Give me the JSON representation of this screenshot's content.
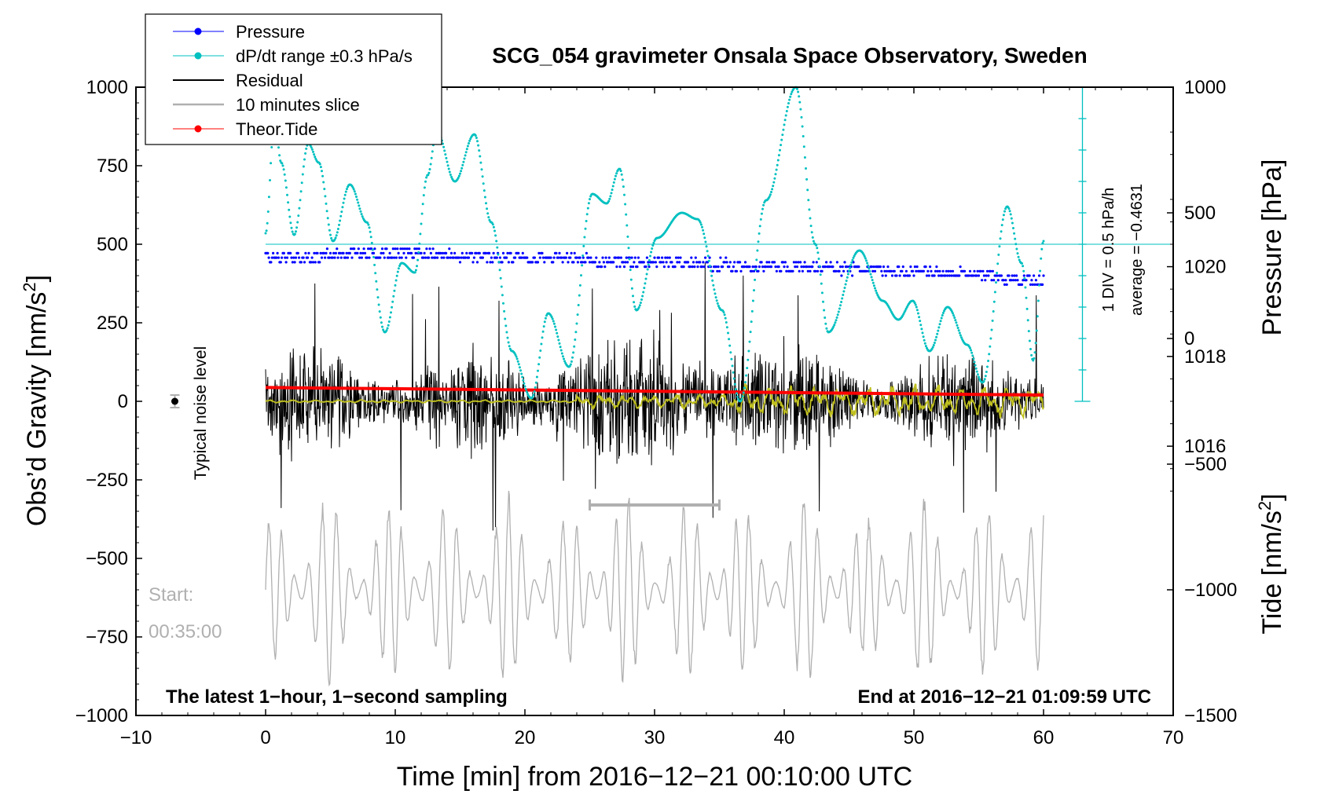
{
  "chart_data": {
    "type": "line",
    "title": "SCG_054 gravimeter Onsala Space Observatory, Sweden",
    "xlabel": "Time [min] from 2016−12−21 00:10:00 UTC",
    "ylabel": "Obs’d Gravity [nm/s2]",
    "ylabel_parts": {
      "main": "Obs’d Gravity [nm/s",
      "sup": "2",
      "end": "]"
    },
    "xlim": [
      -10,
      70
    ],
    "ylim": [
      -1000,
      1000
    ],
    "x_ticks": [
      "−10",
      "0",
      "10",
      "20",
      "30",
      "40",
      "50",
      "60",
      "70"
    ],
    "y_ticks": [
      "−1000",
      "−750",
      "−500",
      "−250",
      "0",
      "250",
      "500",
      "750",
      "1000"
    ],
    "pressure_axis": {
      "label": "Pressure [hPa]",
      "ticks": [
        "1016",
        "1018",
        "1020"
      ],
      "tick_values": [
        1016,
        1018,
        1020
      ],
      "range": [
        1010,
        1024
      ]
    },
    "tide_axis": {
      "label_parts": {
        "main": "Tide [nm/s",
        "sup": "2",
        "end": "]"
      },
      "ticks": [
        "−1500",
        "−1000",
        "−500",
        "0",
        "500",
        "1000"
      ],
      "tick_values": [
        -1500,
        -1000,
        -500,
        0,
        500,
        1000
      ],
      "range": [
        -1500,
        1000
      ]
    },
    "legend": {
      "placement": "top-left",
      "entries": [
        "Pressure",
        "dP/dt range ±0.3 hPa/s",
        "Residual",
        "10 minutes slice",
        "Theor.Tide"
      ],
      "colors": [
        "#0000ff",
        "#00c0c0",
        "#000000",
        "#b0b0b0",
        "#ff0000"
      ]
    },
    "annotations": {
      "noise_level": "Typical noise level",
      "noise_x": -7,
      "noise_y": 0,
      "noise_err": 20,
      "scale_div": "1 DIV = 0.5 hPa/h",
      "scale_avg": "average = −0.4631",
      "scale_x": 63,
      "scale_y_top": 1000,
      "scale_y_bottom": 0,
      "scale_y_mid": 500,
      "slice_start_label": "Start:",
      "slice_start_time": "00:35:00",
      "slice_bar": [
        25,
        35
      ],
      "slice_bar_y": -330,
      "bottom_left": "The latest 1−hour, 1−second sampling",
      "bottom_right": "End at 2016−12−21 01:09:59 UTC"
    },
    "series": [
      {
        "name": "Pressure",
        "axis": "pressure",
        "color": "#0000ff",
        "x": [
          0,
          10,
          20,
          30,
          40,
          50,
          60
        ],
        "values": [
          1020.2,
          1020.3,
          1020.2,
          1020.1,
          1020.0,
          1019.9,
          1019.7
        ]
      },
      {
        "name": "dP/dt range ±0.3 hPa/s",
        "axis": "gravity",
        "color": "#00c0c0",
        "x": [
          0,
          0.7,
          1.2,
          2.2,
          3.3,
          4.1,
          5.2,
          6.5,
          7.8,
          9.2,
          10.5,
          11.5,
          12.5,
          13.2,
          14.6,
          16.1,
          17.4,
          19,
          20.5,
          21.8,
          23.4,
          25.2,
          26.3,
          27.3,
          28.6,
          30.2,
          32.1,
          33.3,
          35.2,
          36.6,
          38.6,
          40.9,
          42.4,
          43.4,
          45.8,
          47.6,
          48.8,
          49.9,
          51.2,
          52.6,
          54.1,
          55.3,
          57.2,
          58.3,
          59.2,
          60
        ],
        "values": [
          535,
          900,
          760,
          530,
          820,
          760,
          510,
          690,
          570,
          220,
          440,
          410,
          720,
          860,
          700,
          850,
          570,
          160,
          10,
          280,
          110,
          660,
          630,
          740,
          290,
          520,
          600,
          580,
          290,
          0,
          640,
          1000,
          500,
          220,
          480,
          320,
          260,
          320,
          160,
          300,
          180,
          60,
          620,
          440,
          130,
          510
        ]
      },
      {
        "name": "Residual",
        "axis": "gravity",
        "color": "#000000",
        "description_range": [
          -350,
          510
        ]
      },
      {
        "name": "10 minutes slice",
        "axis": "gravity",
        "color": "#b0b0b0",
        "baseline": -600,
        "x_range": [
          0,
          60
        ]
      },
      {
        "name": "Theor.Tide",
        "axis": "tide",
        "color": "#ff0000",
        "x": [
          0,
          60
        ],
        "values": [
          -195,
          -225
        ]
      }
    ]
  }
}
